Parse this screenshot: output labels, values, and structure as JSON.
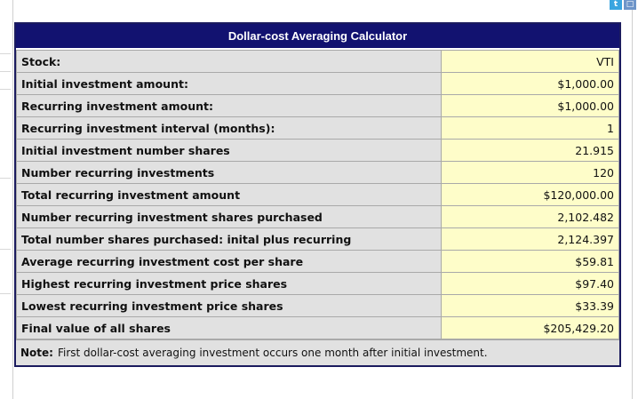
{
  "calculator": {
    "title": "Dollar-cost Averaging Calculator",
    "rows": [
      {
        "label": "Stock:",
        "value": "VTI"
      },
      {
        "label": "Initial investment amount:",
        "value": "$1,000.00"
      },
      {
        "label": "Recurring investment amount:",
        "value": "$1,000.00"
      },
      {
        "label": "Recurring investment interval (months):",
        "value": "1"
      },
      {
        "label": "Initial investment number shares",
        "value": "21.915"
      },
      {
        "label": "Number recurring investments",
        "value": "120"
      },
      {
        "label": "Total recurring investment amount",
        "value": "$120,000.00"
      },
      {
        "label": "Number recurring investment shares purchased",
        "value": "2,102.482"
      },
      {
        "label": "Total number shares purchased: inital plus recurring",
        "value": "2,124.397"
      },
      {
        "label": "Average recurring investment cost per share",
        "value": "$59.81"
      },
      {
        "label": "Highest recurring investment price shares",
        "value": "$97.40"
      },
      {
        "label": "Lowest recurring investment price shares",
        "value": "$33.39"
      },
      {
        "label": "Final value of all shares",
        "value": "$205,429.20"
      }
    ],
    "note": {
      "label": "Note:",
      "text": "First dollar-cost averaging investment occurs one month after initial investment."
    }
  },
  "toolbar": {
    "icons": [
      "twitter-icon",
      "document-icon"
    ]
  },
  "colors": {
    "title_bg": "#121270",
    "label_bg": "#e1e1e1",
    "value_bg": "#fefdc9",
    "border": "#a9a9a9"
  }
}
